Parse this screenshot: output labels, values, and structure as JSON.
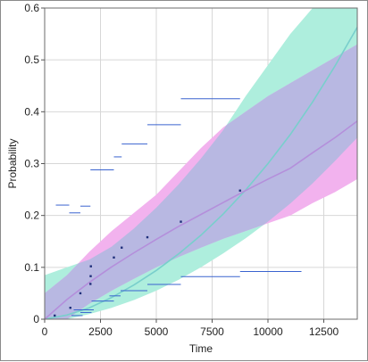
{
  "chart_data": {
    "type": "line",
    "xlabel": "Time",
    "ylabel": "Probability",
    "xlim": [
      0,
      14000
    ],
    "ylim": [
      0,
      0.6
    ],
    "x_ticks": [
      0,
      2500,
      5000,
      7500,
      10000,
      12500
    ],
    "x_tick_labels": [
      "0",
      "2500",
      "5000",
      "7500",
      "10000",
      "12500"
    ],
    "y_ticks": [
      0,
      0.1,
      0.2,
      0.3,
      0.4,
      0.5,
      0.6
    ],
    "y_tick_labels": [
      "0",
      "0.1",
      "0.2",
      "0.3",
      "0.4",
      "0.5",
      "0.6"
    ],
    "grid": true,
    "colors": {
      "green_band": "#aeeedd",
      "pink_band": "#f2b2ee",
      "overlap_band": "#b8b8e2",
      "green_line": "#79cfcc",
      "purple_line": "#b48fdb",
      "interval": "#3a63cf",
      "point": "#1f2f7a"
    },
    "series": [
      {
        "x": [
          0,
          1000,
          2000,
          3000,
          4000,
          5000,
          6000,
          7000,
          8000,
          9000,
          10000,
          11000,
          12000,
          13000,
          14000
        ],
        "y": [
          0.0,
          0.008,
          0.022,
          0.042,
          0.066,
          0.094,
          0.126,
          0.162,
          0.203,
          0.249,
          0.3,
          0.356,
          0.419,
          0.488,
          0.563
        ]
      },
      {
        "x": [
          0,
          1000,
          2000,
          3000,
          4000,
          5000,
          6000,
          7000,
          8000,
          9000,
          10000,
          11000,
          12000,
          13000,
          14000
        ],
        "y": [
          0.0,
          0.038,
          0.071,
          0.101,
          0.128,
          0.154,
          0.179,
          0.202,
          0.225,
          0.248,
          0.27,
          0.291,
          0.321,
          0.35,
          0.382
        ]
      }
    ],
    "bands": [
      {
        "x": [
          0,
          1000,
          2000,
          3000,
          4000,
          5000,
          6000,
          7000,
          8000,
          9000,
          10000,
          11000,
          12000,
          13000,
          14000
        ],
        "lower": [
          0.0,
          0.0,
          0.01,
          0.022,
          0.037,
          0.055,
          0.076,
          0.1,
          0.127,
          0.156,
          0.188,
          0.223,
          0.262,
          0.305,
          0.35
        ],
        "upper": [
          0.085,
          0.1,
          0.115,
          0.14,
          0.175,
          0.215,
          0.26,
          0.31,
          0.365,
          0.43,
          0.49,
          0.55,
          0.6,
          0.6,
          0.6
        ]
      },
      {
        "x": [
          0,
          1000,
          2000,
          3000,
          4000,
          5000,
          6000,
          7000,
          8000,
          9000,
          10000,
          11000,
          12000,
          13000,
          14000
        ],
        "lower": [
          0.0,
          0.0,
          0.03,
          0.055,
          0.078,
          0.1,
          0.12,
          0.138,
          0.155,
          0.17,
          0.185,
          0.2,
          0.224,
          0.245,
          0.27
        ],
        "upper": [
          0.05,
          0.085,
          0.13,
          0.17,
          0.205,
          0.24,
          0.285,
          0.33,
          0.37,
          0.4,
          0.43,
          0.455,
          0.48,
          0.505,
          0.53
        ]
      }
    ],
    "points": [
      {
        "x": 450,
        "y": 0.007
      },
      {
        "x": 1150,
        "y": 0.022
      },
      {
        "x": 1600,
        "y": 0.05
      },
      {
        "x": 2050,
        "y": 0.068
      },
      {
        "x": 2060,
        "y": 0.083
      },
      {
        "x": 2070,
        "y": 0.102
      },
      {
        "x": 3100,
        "y": 0.119
      },
      {
        "x": 3450,
        "y": 0.138
      },
      {
        "x": 4600,
        "y": 0.158
      },
      {
        "x": 6100,
        "y": 0.188
      },
      {
        "x": 8750,
        "y": 0.248
      }
    ],
    "intervals": [
      {
        "x0": 1200,
        "x1": 1700,
        "y": 0.007
      },
      {
        "x0": 1600,
        "x1": 2100,
        "y": 0.013
      },
      {
        "x0": 1300,
        "x1": 2200,
        "y": 0.018
      },
      {
        "x0": 2100,
        "x1": 3100,
        "y": 0.035
      },
      {
        "x0": 2900,
        "x1": 3400,
        "y": 0.045
      },
      {
        "x0": 3400,
        "x1": 4600,
        "y": 0.055
      },
      {
        "x0": 4600,
        "x1": 6100,
        "y": 0.067
      },
      {
        "x0": 6100,
        "x1": 8750,
        "y": 0.082
      },
      {
        "x0": 8750,
        "x1": 11500,
        "y": 0.092
      },
      {
        "x0": 500,
        "x1": 1100,
        "y": 0.22
      },
      {
        "x0": 1100,
        "x1": 1600,
        "y": 0.205
      },
      {
        "x0": 1600,
        "x1": 2050,
        "y": 0.218
      },
      {
        "x0": 2050,
        "x1": 3100,
        "y": 0.288
      },
      {
        "x0": 3100,
        "x1": 3450,
        "y": 0.313
      },
      {
        "x0": 3450,
        "x1": 4600,
        "y": 0.338
      },
      {
        "x0": 4600,
        "x1": 6100,
        "y": 0.375
      },
      {
        "x0": 6100,
        "x1": 8750,
        "y": 0.425
      }
    ]
  }
}
